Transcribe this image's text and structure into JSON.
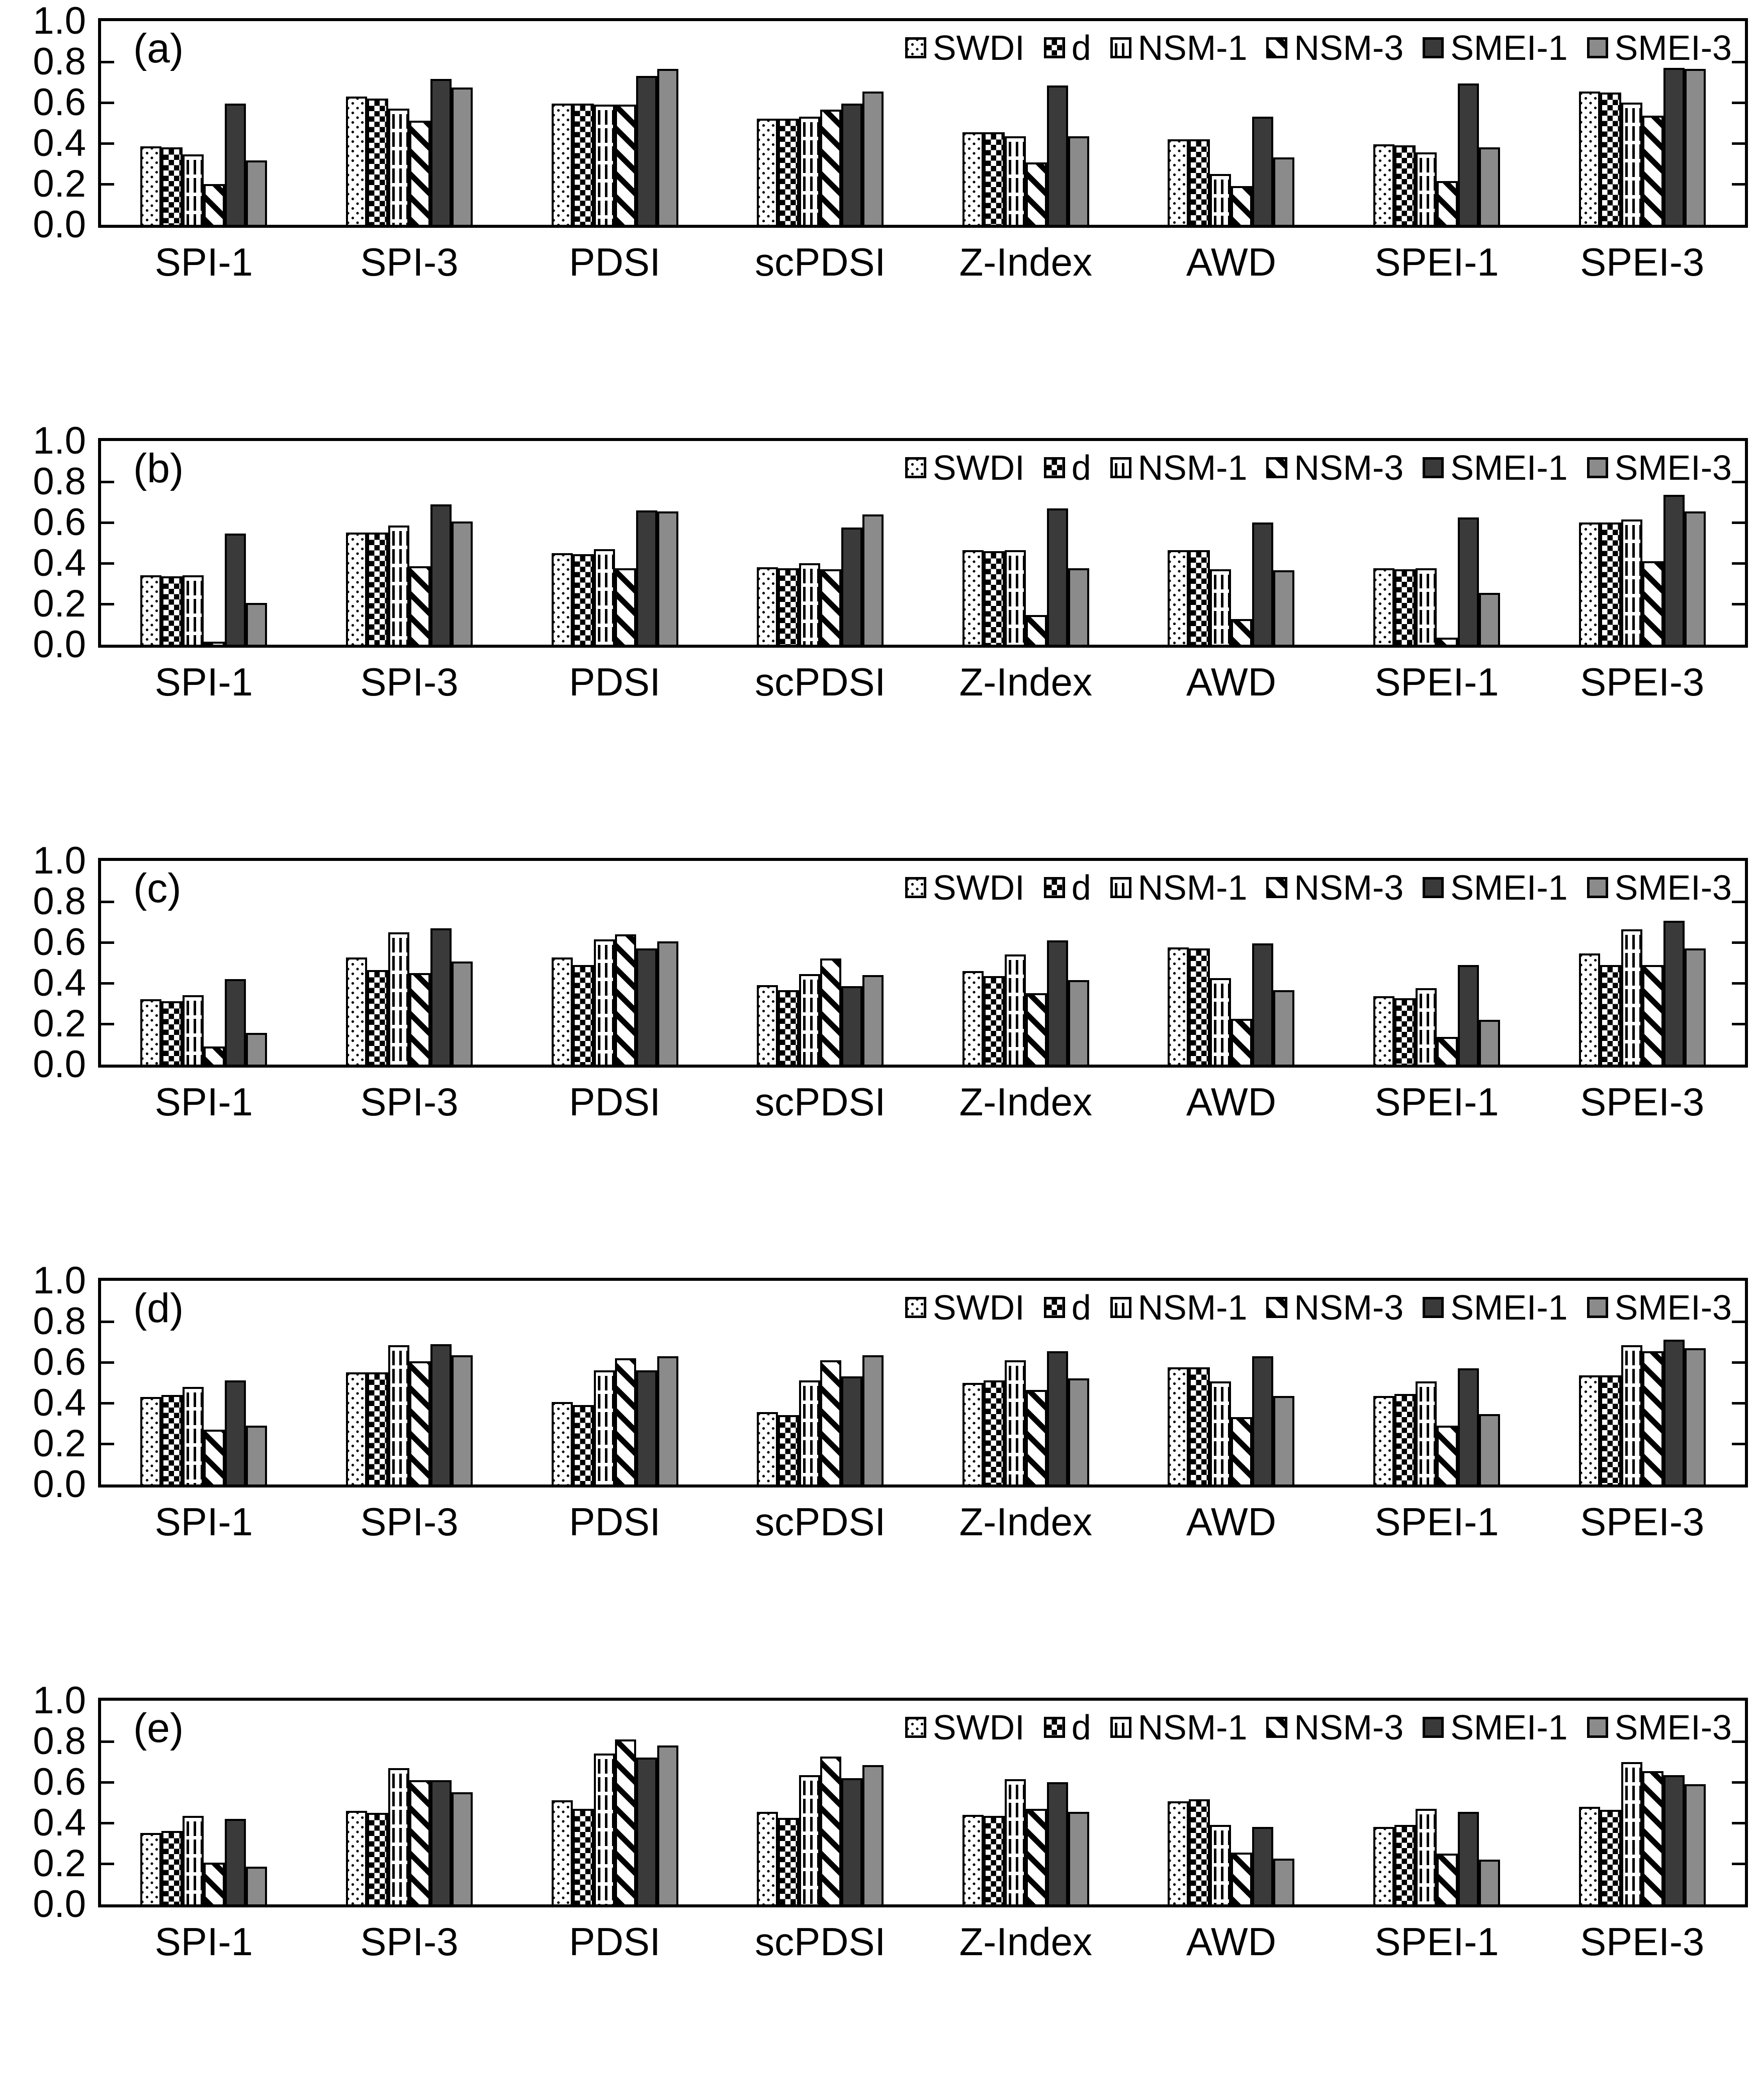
{
  "figure": {
    "background": "#ffffff",
    "bar_border_color": "#000000",
    "smei1_color": "#3a3a3a",
    "smei3_color": "#8b8b8b"
  },
  "y_axis": {
    "tick_labels": [
      "1.0",
      "0.8",
      "0.6",
      "0.4",
      "0.2",
      "0.0"
    ],
    "tick_values": [
      1.0,
      0.8,
      0.6,
      0.4,
      0.2,
      0.0
    ]
  },
  "legend_entries": [
    {
      "label": "SWDI",
      "pattern": "fine-dots"
    },
    {
      "label": "d",
      "pattern": "coarse-checker"
    },
    {
      "label": "NSM-1",
      "pattern": "dashed-vertical"
    },
    {
      "label": "NSM-3",
      "pattern": "diagonal-stripes"
    },
    {
      "label": "SMEI-1",
      "pattern": "solid-dark"
    },
    {
      "label": "SMEI-3",
      "pattern": "solid-gray"
    }
  ],
  "chart_data": [
    {
      "type": "bar",
      "panel_label": "(a)",
      "ylim": [
        0,
        1
      ],
      "grid": false,
      "legend_position": "top-right-inside",
      "categories": [
        "SPI-1",
        "SPI-3",
        "PDSI",
        "scPDSI",
        "Z-Index",
        "AWD",
        "SPEI-1",
        "SPEI-3"
      ],
      "series": [
        {
          "name": "SWDI",
          "pattern": "fine-dots",
          "values": [
            0.385,
            0.63,
            0.595,
            0.52,
            0.455,
            0.42,
            0.395,
            0.655
          ]
        },
        {
          "name": "d",
          "pattern": "coarse-checker",
          "values": [
            0.38,
            0.62,
            0.595,
            0.52,
            0.455,
            0.42,
            0.39,
            0.65
          ]
        },
        {
          "name": "NSM-1",
          "pattern": "dashed-vertical",
          "values": [
            0.345,
            0.57,
            0.59,
            0.53,
            0.435,
            0.25,
            0.355,
            0.6
          ]
        },
        {
          "name": "NSM-3",
          "pattern": "diagonal-stripes",
          "values": [
            0.2,
            0.51,
            0.59,
            0.565,
            0.305,
            0.19,
            0.215,
            0.535
          ]
        },
        {
          "name": "SMEI-1",
          "pattern": "solid-dark",
          "values": [
            0.595,
            0.715,
            0.73,
            0.595,
            0.685,
            0.53,
            0.695,
            0.77
          ]
        },
        {
          "name": "SMEI-3",
          "pattern": "solid-gray",
          "values": [
            0.315,
            0.675,
            0.765,
            0.655,
            0.435,
            0.33,
            0.38,
            0.765
          ]
        }
      ]
    },
    {
      "type": "bar",
      "panel_label": "(b)",
      "ylim": [
        0,
        1
      ],
      "grid": false,
      "legend_position": "top-right-inside",
      "categories": [
        "SPI-1",
        "SPI-3",
        "PDSI",
        "scPDSI",
        "Z-Index",
        "AWD",
        "SPEI-1",
        "SPEI-3"
      ],
      "series": [
        {
          "name": "SWDI",
          "pattern": "fine-dots",
          "values": [
            0.34,
            0.55,
            0.45,
            0.38,
            0.465,
            0.465,
            0.375,
            0.6
          ]
        },
        {
          "name": "d",
          "pattern": "coarse-checker",
          "values": [
            0.335,
            0.55,
            0.445,
            0.375,
            0.46,
            0.465,
            0.37,
            0.6
          ]
        },
        {
          "name": "NSM-1",
          "pattern": "dashed-vertical",
          "values": [
            0.34,
            0.585,
            0.47,
            0.4,
            0.465,
            0.37,
            0.375,
            0.615
          ]
        },
        {
          "name": "NSM-3",
          "pattern": "diagonal-stripes",
          "values": [
            0.015,
            0.385,
            0.375,
            0.37,
            0.145,
            0.125,
            0.035,
            0.41
          ]
        },
        {
          "name": "SMEI-1",
          "pattern": "solid-dark",
          "values": [
            0.545,
            0.69,
            0.66,
            0.575,
            0.67,
            0.6,
            0.625,
            0.735
          ]
        },
        {
          "name": "SMEI-3",
          "pattern": "solid-gray",
          "values": [
            0.205,
            0.605,
            0.655,
            0.64,
            0.375,
            0.365,
            0.255,
            0.655
          ]
        }
      ]
    },
    {
      "type": "bar",
      "panel_label": "(c)",
      "ylim": [
        0,
        1
      ],
      "grid": false,
      "legend_position": "top-right-inside",
      "categories": [
        "SPI-1",
        "SPI-3",
        "PDSI",
        "scPDSI",
        "Z-Index",
        "AWD",
        "SPEI-1",
        "SPEI-3"
      ],
      "series": [
        {
          "name": "SWDI",
          "pattern": "fine-dots",
          "values": [
            0.32,
            0.525,
            0.525,
            0.39,
            0.46,
            0.575,
            0.335,
            0.545
          ]
        },
        {
          "name": "d",
          "pattern": "coarse-checker",
          "values": [
            0.31,
            0.465,
            0.49,
            0.365,
            0.435,
            0.57,
            0.325,
            0.49
          ]
        },
        {
          "name": "NSM-1",
          "pattern": "dashed-vertical",
          "values": [
            0.34,
            0.65,
            0.615,
            0.445,
            0.54,
            0.425,
            0.375,
            0.665
          ]
        },
        {
          "name": "NSM-3",
          "pattern": "diagonal-stripes",
          "values": [
            0.09,
            0.45,
            0.64,
            0.52,
            0.35,
            0.225,
            0.135,
            0.49
          ]
        },
        {
          "name": "SMEI-1",
          "pattern": "solid-dark",
          "values": [
            0.42,
            0.67,
            0.57,
            0.385,
            0.61,
            0.595,
            0.49,
            0.705
          ]
        },
        {
          "name": "SMEI-3",
          "pattern": "solid-gray",
          "values": [
            0.155,
            0.505,
            0.605,
            0.44,
            0.415,
            0.365,
            0.22,
            0.57
          ]
        }
      ]
    },
    {
      "type": "bar",
      "panel_label": "(d)",
      "ylim": [
        0,
        1
      ],
      "grid": false,
      "legend_position": "top-right-inside",
      "categories": [
        "SPI-1",
        "SPI-3",
        "PDSI",
        "scPDSI",
        "Z-Index",
        "AWD",
        "SPEI-1",
        "SPEI-3"
      ],
      "series": [
        {
          "name": "SWDI",
          "pattern": "fine-dots",
          "values": [
            0.43,
            0.55,
            0.405,
            0.355,
            0.5,
            0.575,
            0.435,
            0.535
          ]
        },
        {
          "name": "d",
          "pattern": "coarse-checker",
          "values": [
            0.44,
            0.55,
            0.39,
            0.34,
            0.51,
            0.575,
            0.445,
            0.535
          ]
        },
        {
          "name": "NSM-1",
          "pattern": "dashed-vertical",
          "values": [
            0.48,
            0.685,
            0.56,
            0.51,
            0.61,
            0.505,
            0.505,
            0.685
          ]
        },
        {
          "name": "NSM-3",
          "pattern": "diagonal-stripes",
          "values": [
            0.27,
            0.605,
            0.62,
            0.61,
            0.465,
            0.33,
            0.29,
            0.655
          ]
        },
        {
          "name": "SMEI-1",
          "pattern": "solid-dark",
          "values": [
            0.51,
            0.69,
            0.56,
            0.53,
            0.655,
            0.63,
            0.57,
            0.71
          ]
        },
        {
          "name": "SMEI-3",
          "pattern": "solid-gray",
          "values": [
            0.29,
            0.635,
            0.63,
            0.635,
            0.52,
            0.435,
            0.345,
            0.67
          ]
        }
      ]
    },
    {
      "type": "bar",
      "panel_label": "(e)",
      "ylim": [
        0,
        1
      ],
      "grid": false,
      "legend_position": "top-right-inside",
      "categories": [
        "SPI-1",
        "SPI-3",
        "PDSI",
        "scPDSI",
        "Z-Index",
        "AWD",
        "SPEI-1",
        "SPEI-3"
      ],
      "series": [
        {
          "name": "SWDI",
          "pattern": "fine-dots",
          "values": [
            0.35,
            0.46,
            0.51,
            0.455,
            0.44,
            0.505,
            0.38,
            0.48
          ]
        },
        {
          "name": "d",
          "pattern": "coarse-checker",
          "values": [
            0.36,
            0.45,
            0.47,
            0.425,
            0.435,
            0.515,
            0.39,
            0.465
          ]
        },
        {
          "name": "NSM-1",
          "pattern": "dashed-vertical",
          "values": [
            0.435,
            0.67,
            0.74,
            0.635,
            0.615,
            0.39,
            0.47,
            0.7
          ]
        },
        {
          "name": "NSM-3",
          "pattern": "diagonal-stripes",
          "values": [
            0.205,
            0.61,
            0.81,
            0.725,
            0.47,
            0.255,
            0.25,
            0.655
          ]
        },
        {
          "name": "SMEI-1",
          "pattern": "solid-dark",
          "values": [
            0.42,
            0.61,
            0.72,
            0.62,
            0.6,
            0.38,
            0.455,
            0.635
          ]
        },
        {
          "name": "SMEI-3",
          "pattern": "solid-gray",
          "values": [
            0.185,
            0.55,
            0.78,
            0.685,
            0.455,
            0.225,
            0.22,
            0.59
          ]
        }
      ]
    }
  ]
}
